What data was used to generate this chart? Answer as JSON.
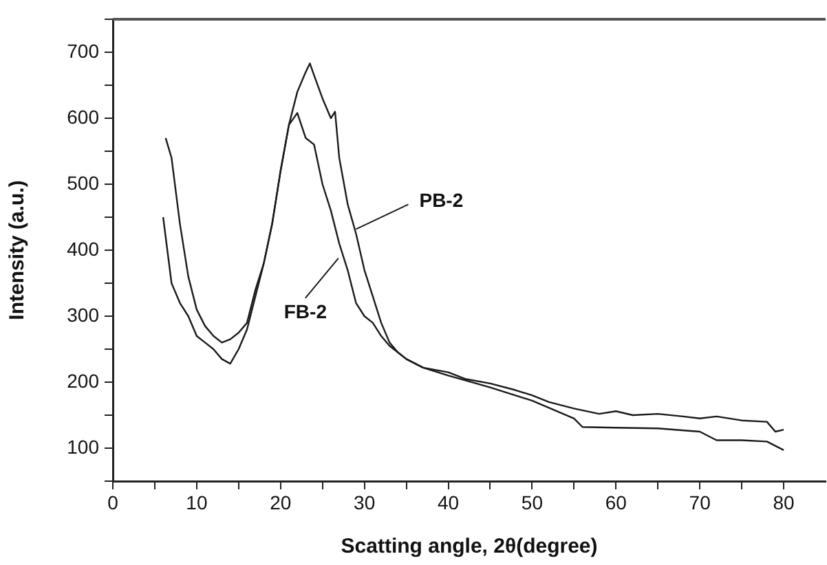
{
  "chart_data": {
    "type": "line",
    "xlabel": "Scatting angle, 2θ(degree)",
    "ylabel": "Intensity (a.u.)",
    "xlim": [
      0,
      85
    ],
    "ylim": [
      50,
      750
    ],
    "xticks": [
      0,
      {
        "value": 5,
        "label": null
      },
      10,
      {
        "value": 15,
        "label": null
      },
      20,
      {
        "value": 25,
        "label": null
      },
      30,
      {
        "value": 35,
        "label": null
      },
      40,
      {
        "value": 45,
        "label": null
      },
      50,
      {
        "value": 55,
        "label": null
      },
      60,
      {
        "value": 65,
        "label": null
      },
      70,
      {
        "value": 75,
        "label": null
      },
      80
    ],
    "yticks": [
      {
        "value": 50,
        "label": null
      },
      100,
      {
        "value": 150,
        "label": null
      },
      200,
      {
        "value": 250,
        "label": null
      },
      300,
      {
        "value": 350,
        "label": null
      },
      400,
      {
        "value": 450,
        "label": null
      },
      500,
      {
        "value": 550,
        "label": null
      },
      600,
      {
        "value": 650,
        "label": null
      },
      700,
      {
        "value": 750,
        "label": null
      }
    ],
    "grid": false,
    "legend": false,
    "marker": "none",
    "line_style": "solid",
    "series": [
      {
        "color": "#1a1a1a",
        "x": [
          6.3,
          7,
          8,
          9,
          10,
          11,
          12,
          13,
          14,
          15,
          16,
          17,
          18,
          19,
          20,
          21,
          22,
          23,
          23.5,
          24,
          25,
          26,
          26.5,
          27,
          28,
          29,
          30,
          31,
          32,
          33,
          34,
          35,
          37,
          40,
          42,
          45,
          48,
          50,
          52,
          55,
          58,
          60,
          62,
          65,
          68,
          70,
          72,
          75,
          78,
          79,
          80
        ],
        "values": [
          570,
          540,
          440,
          360,
          310,
          285,
          270,
          260,
          265,
          275,
          290,
          340,
          380,
          440,
          520,
          590,
          640,
          670,
          683,
          665,
          630,
          600,
          610,
          540,
          470,
          425,
          370,
          330,
          290,
          260,
          245,
          235,
          222,
          215,
          205,
          198,
          188,
          180,
          170,
          160,
          152,
          156,
          150,
          152,
          148,
          145,
          148,
          142,
          140,
          125,
          128
        ]
      },
      {
        "color": "#1a1a1a",
        "x": [
          6,
          7,
          8,
          9,
          10,
          11,
          12,
          13,
          14,
          15,
          16,
          17,
          18,
          19,
          20,
          21,
          22,
          23,
          24,
          25,
          26,
          27,
          28,
          29,
          30,
          31,
          32,
          33,
          34,
          35,
          37,
          40,
          45,
          50,
          55,
          56,
          60,
          65,
          70,
          72,
          75,
          78,
          80
        ],
        "values": [
          450,
          350,
          320,
          300,
          270,
          260,
          250,
          235,
          228,
          250,
          280,
          330,
          380,
          440,
          520,
          590,
          608,
          570,
          560,
          500,
          460,
          410,
          370,
          320,
          300,
          290,
          270,
          255,
          245,
          235,
          222,
          210,
          192,
          172,
          145,
          132,
          131,
          130,
          125,
          112,
          112,
          110,
          97
        ]
      }
    ],
    "annotations": [
      {
        "text": "PB-2",
        "x": 29,
        "y": 432
      },
      {
        "text": "FB-2",
        "x": 26.9,
        "y": 388
      }
    ]
  }
}
